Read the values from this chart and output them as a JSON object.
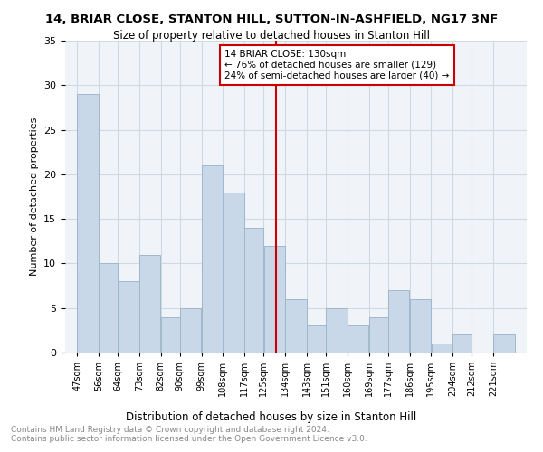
{
  "title1": "14, BRIAR CLOSE, STANTON HILL, SUTTON-IN-ASHFIELD, NG17 3NF",
  "title2": "Size of property relative to detached houses in Stanton Hill",
  "xlabel": "Distribution of detached houses by size in Stanton Hill",
  "ylabel": "Number of detached properties",
  "footnote": "Contains HM Land Registry data © Crown copyright and database right 2024.\nContains public sector information licensed under the Open Government Licence v3.0.",
  "bar_labels": [
    "47sqm",
    "56sqm",
    "64sqm",
    "73sqm",
    "82sqm",
    "90sqm",
    "99sqm",
    "108sqm",
    "117sqm",
    "125sqm",
    "134sqm",
    "143sqm",
    "151sqm",
    "160sqm",
    "169sqm",
    "177sqm",
    "186sqm",
    "195sqm",
    "204sqm",
    "212sqm",
    "221sqm"
  ],
  "bar_values": [
    29,
    10,
    8,
    11,
    4,
    5,
    21,
    18,
    14,
    12,
    6,
    3,
    5,
    3,
    4,
    7,
    6,
    1,
    2,
    0,
    2
  ],
  "bar_color": "#c8d8e8",
  "bar_edge_color": "#a0b8cc",
  "property_line_x": 130,
  "annotation_text": "14 BRIAR CLOSE: 130sqm\n← 76% of detached houses are smaller (129)\n24% of semi-detached houses are larger (40) →",
  "annotation_box_color": "#cc0000",
  "ylim": [
    0,
    35
  ],
  "yticks": [
    0,
    5,
    10,
    15,
    20,
    25,
    30,
    35
  ],
  "grid_color": "#d0d8e0",
  "background_color": "#f0f4f8"
}
